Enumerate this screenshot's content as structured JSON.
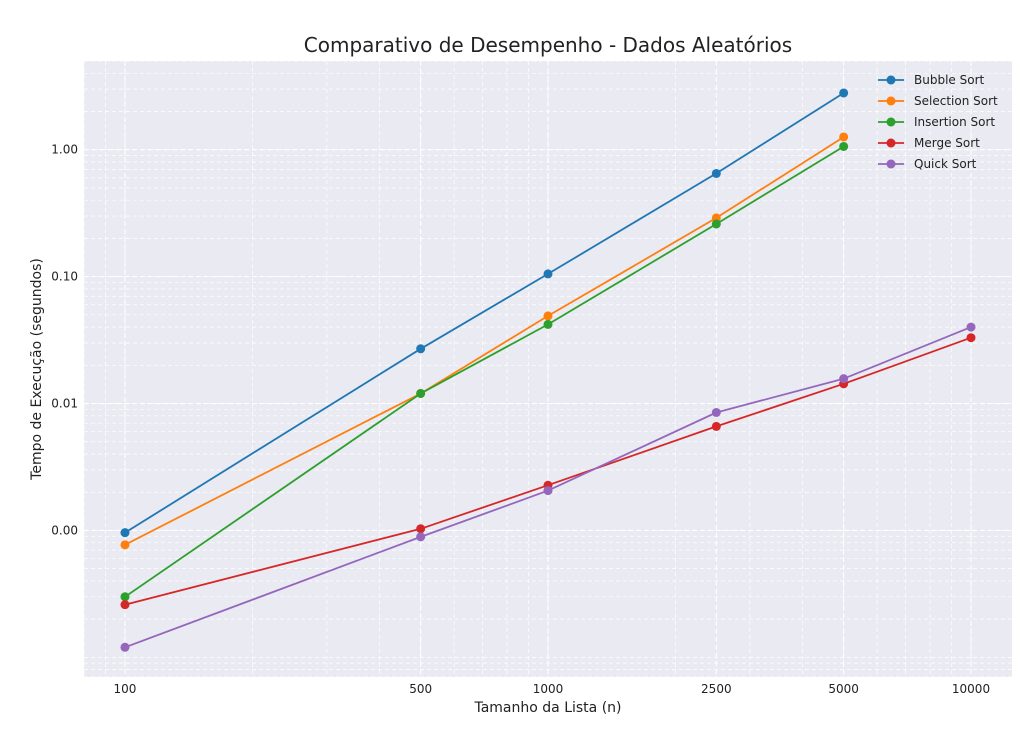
{
  "chart_data": {
    "type": "line",
    "title": "Comparativo de Desempenho - Dados Aleatórios",
    "xlabel": "Tamanho da Lista (n)",
    "ylabel": "Tempo de Execução (segundos)",
    "x_scale": "log",
    "y_scale": "log",
    "xlim": [
      80,
      12500
    ],
    "ylim": [
      7e-05,
      5
    ],
    "x_ticks": [
      100,
      500,
      1000,
      2500,
      5000,
      10000
    ],
    "x_tick_labels": [
      "100",
      "500",
      "1000",
      "2500",
      "5000",
      "10000"
    ],
    "y_ticks": [
      0.001,
      0.01,
      0.1,
      1
    ],
    "y_tick_labels": [
      "0.00",
      "0.01",
      "0.10",
      "1.00"
    ],
    "grid": true,
    "legend_position": "top-right",
    "background_color": "#eaeaf2",
    "series": [
      {
        "name": "Bubble Sort",
        "color": "#1f77b4",
        "x": [
          100,
          500,
          1000,
          2500,
          5000
        ],
        "y": [
          0.00096,
          0.027,
          0.105,
          0.65,
          2.8
        ]
      },
      {
        "name": "Selection Sort",
        "color": "#ff7f0e",
        "x": [
          100,
          500,
          1000,
          2500,
          5000
        ],
        "y": [
          0.00077,
          0.012,
          0.049,
          0.29,
          1.26
        ]
      },
      {
        "name": "Insertion Sort",
        "color": "#2ca02c",
        "x": [
          100,
          500,
          1000,
          2500,
          5000
        ],
        "y": [
          0.0003,
          0.012,
          0.042,
          0.26,
          1.06
        ]
      },
      {
        "name": "Merge Sort",
        "color": "#d62728",
        "x": [
          100,
          500,
          1000,
          2500,
          5000,
          10000
        ],
        "y": [
          0.00026,
          0.00103,
          0.00227,
          0.0066,
          0.0143,
          0.033
        ]
      },
      {
        "name": "Quick Sort",
        "color": "#9467bd",
        "x": [
          100,
          500,
          1000,
          2500,
          5000,
          10000
        ],
        "y": [
          0.00012,
          0.00089,
          0.00206,
          0.0085,
          0.0157,
          0.04
        ]
      }
    ]
  }
}
